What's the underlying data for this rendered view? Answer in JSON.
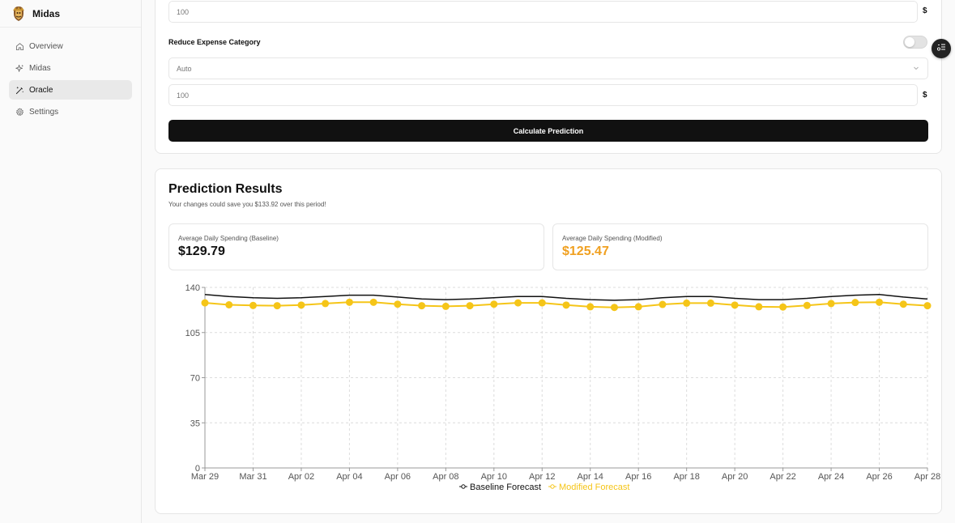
{
  "app": {
    "name": "Midas"
  },
  "sidebar": {
    "items": [
      {
        "label": "Overview",
        "icon": "home-icon",
        "active": false
      },
      {
        "label": "Midas",
        "icon": "sparkles-icon",
        "active": false
      },
      {
        "label": "Oracle",
        "icon": "magic-wand-icon",
        "active": true
      },
      {
        "label": "Settings",
        "icon": "gear-icon",
        "active": false
      }
    ]
  },
  "form": {
    "amount_value": "100",
    "currency_symbol": "$",
    "reduce_expense_label": "Reduce Expense Category",
    "reduce_expense_enabled": false,
    "category_value": "Auto",
    "reduce_amount_value": "100",
    "calculate_label": "Calculate Prediction"
  },
  "results": {
    "title": "Prediction Results",
    "subtitle": "Your changes could save you $133.92 over this period!",
    "baseline_label": "Average Daily Spending (Baseline)",
    "baseline_value": "$129.79",
    "modified_label": "Average Daily Spending (Modified)",
    "modified_value": "$125.47"
  },
  "colors": {
    "baseline": "#111111",
    "modified": "#f5c518",
    "modified_text": "#f0a020",
    "accent_dark": "#111111"
  },
  "chart_data": {
    "type": "line",
    "x": [
      "Mar 29",
      "Mar 30",
      "Mar 31",
      "Apr 01",
      "Apr 02",
      "Apr 03",
      "Apr 04",
      "Apr 05",
      "Apr 06",
      "Apr 07",
      "Apr 08",
      "Apr 09",
      "Apr 10",
      "Apr 11",
      "Apr 12",
      "Apr 13",
      "Apr 14",
      "Apr 15",
      "Apr 16",
      "Apr 17",
      "Apr 18",
      "Apr 19",
      "Apr 20",
      "Apr 21",
      "Apr 22",
      "Apr 23",
      "Apr 24",
      "Apr 25",
      "Apr 26",
      "Apr 27",
      "Apr 28"
    ],
    "tick_labels": [
      "Mar 29",
      "Mar 31",
      "Apr 02",
      "Apr 04",
      "Apr 06",
      "Apr 08",
      "Apr 10",
      "Apr 12",
      "Apr 14",
      "Apr 16",
      "Apr 18",
      "Apr 20",
      "Apr 22",
      "Apr 24",
      "Apr 26",
      "Apr 28"
    ],
    "ylim": [
      0,
      140
    ],
    "yticks": [
      0,
      35,
      70,
      105,
      140
    ],
    "grid": true,
    "legend_position": "bottom",
    "series": [
      {
        "name": "Baseline Forecast",
        "color": "#111111",
        "markers": false,
        "values": [
          134.5,
          133.0,
          132.0,
          131.5,
          132.0,
          133.0,
          134.0,
          134.0,
          132.5,
          131.0,
          130.5,
          131.0,
          132.0,
          133.0,
          133.0,
          131.5,
          130.5,
          130.0,
          130.5,
          132.0,
          133.0,
          133.0,
          131.5,
          130.5,
          130.5,
          131.5,
          133.0,
          134.0,
          134.5,
          132.5,
          131.0
        ]
      },
      {
        "name": "Modified Forecast",
        "color": "#f5c518",
        "markers": true,
        "values": [
          128.0,
          126.5,
          126.0,
          125.8,
          126.3,
          127.5,
          128.5,
          128.5,
          127.0,
          125.8,
          125.3,
          125.8,
          127.0,
          128.0,
          128.0,
          126.3,
          125.0,
          124.5,
          125.0,
          126.8,
          127.8,
          127.8,
          126.3,
          125.0,
          124.8,
          126.0,
          127.5,
          128.3,
          128.5,
          127.0,
          125.8
        ]
      }
    ]
  }
}
